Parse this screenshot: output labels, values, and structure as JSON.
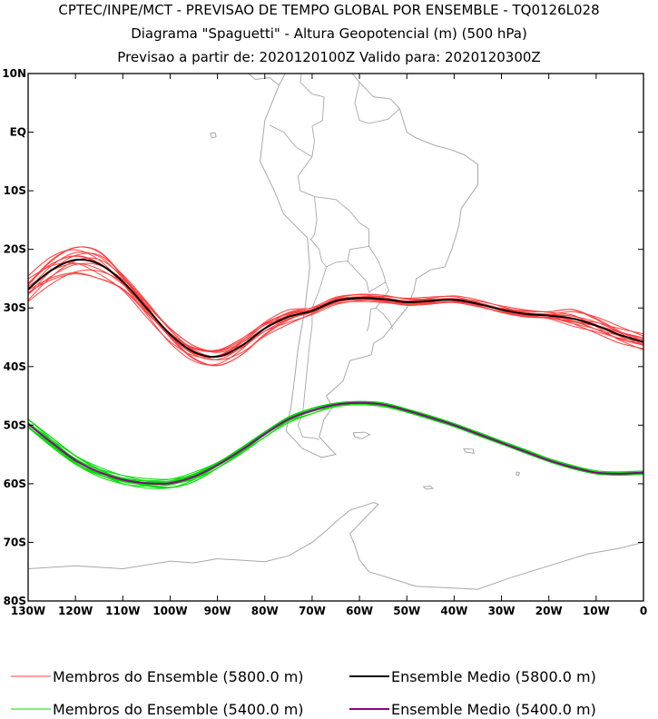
{
  "header": {
    "line1": "CPTEC/INPE/MCT - PREVISAO DE TEMPO GLOBAL POR ENSEMBLE - TQ0126L028",
    "line2": "Diagrama \"Spaguetti\" - Altura Geopotencial (m) (500 hPa)",
    "line3": "Previsao a partir de: 2020120100Z  Valido para: 2020120300Z"
  },
  "chart_data": {
    "type": "line",
    "map": "South America (continent outline, country borders)",
    "xlim": [
      -130,
      0
    ],
    "ylim": [
      -80,
      10
    ],
    "x_ticks": [
      {
        "value": -130,
        "label": "130W"
      },
      {
        "value": -120,
        "label": "120W"
      },
      {
        "value": -110,
        "label": "110W"
      },
      {
        "value": -100,
        "label": "100W"
      },
      {
        "value": -90,
        "label": "90W"
      },
      {
        "value": -80,
        "label": "80W"
      },
      {
        "value": -70,
        "label": "70W"
      },
      {
        "value": -60,
        "label": "60W"
      },
      {
        "value": -50,
        "label": "50W"
      },
      {
        "value": -40,
        "label": "40W"
      },
      {
        "value": -30,
        "label": "30W"
      },
      {
        "value": -20,
        "label": "20W"
      },
      {
        "value": -10,
        "label": "10W"
      },
      {
        "value": 0,
        "label": "0"
      }
    ],
    "y_ticks": [
      {
        "value": 10,
        "label": "10N"
      },
      {
        "value": 0,
        "label": "EQ"
      },
      {
        "value": -10,
        "label": "10S"
      },
      {
        "value": -20,
        "label": "20S"
      },
      {
        "value": -30,
        "label": "30S"
      },
      {
        "value": -40,
        "label": "40S"
      },
      {
        "value": -50,
        "label": "50S"
      },
      {
        "value": -60,
        "label": "60S"
      },
      {
        "value": -70,
        "label": "70S"
      },
      {
        "value": -80,
        "label": "80S"
      }
    ],
    "series": [
      {
        "name": "Ensemble Medio (5800.0 m)",
        "color": "#000000",
        "x": [
          -130,
          -125,
          -120,
          -115,
          -110,
          -105,
          -100,
          -95,
          -90,
          -85,
          -80,
          -75,
          -70,
          -65,
          -60,
          -55,
          -50,
          -45,
          -40,
          -35,
          -30,
          -25,
          -20,
          -15,
          -10,
          -5,
          0
        ],
        "y": [
          -26.8,
          -23.5,
          -21.8,
          -22.5,
          -25.5,
          -30,
          -34.5,
          -37.5,
          -38.3,
          -36.5,
          -33.5,
          -31.5,
          -30.5,
          -28.8,
          -28.3,
          -28.5,
          -29,
          -28.8,
          -28.6,
          -29.3,
          -30.3,
          -31,
          -31.3,
          -31.8,
          -33,
          -34.6,
          -35.8
        ]
      },
      {
        "name": "Ensemble Medio (5400.0 m)",
        "color": "#8b008b",
        "x": [
          -130,
          -125,
          -120,
          -115,
          -110,
          -105,
          -100,
          -95,
          -90,
          -85,
          -80,
          -75,
          -70,
          -65,
          -60,
          -55,
          -50,
          -45,
          -40,
          -35,
          -30,
          -25,
          -20,
          -15,
          -10,
          -5,
          0
        ],
        "y": [
          -49.8,
          -53,
          -56,
          -58,
          -59.3,
          -59.9,
          -59.9,
          -58.8,
          -56.8,
          -54.3,
          -51.5,
          -49,
          -47.5,
          -46.5,
          -46.2,
          -46.5,
          -47.5,
          -48.7,
          -50,
          -51.5,
          -53,
          -54.5,
          -56,
          -57.2,
          -58.1,
          -58.3,
          -58.1
        ]
      }
    ],
    "ensemble_members": [
      {
        "name": "Membros do Ensemble (5800.0 m)",
        "color": "#ff4040",
        "count": 14,
        "based_on": "Ensemble Medio (5800.0 m)"
      },
      {
        "name": "Membros do Ensemble (5400.0 m)",
        "color": "#00dd00",
        "count": 14,
        "based_on": "Ensemble Medio (5400.0 m)"
      }
    ],
    "legend": {
      "position": "bottom",
      "items": [
        {
          "label": "Membros do Ensemble (5800.0 m)",
          "color": "#ff4040",
          "thin": true
        },
        {
          "label": "Ensemble Medio (5800.0 m)",
          "color": "#000000",
          "thin": false
        },
        {
          "label": "Membros do Ensemble (5400.0 m)",
          "color": "#00dd00",
          "thin": true
        },
        {
          "label": "Ensemble Medio (5400.0 m)",
          "color": "#8b008b",
          "thin": false
        }
      ]
    },
    "colors": {
      "map_outline": "#a8a8a8",
      "frame": "#000000"
    }
  }
}
